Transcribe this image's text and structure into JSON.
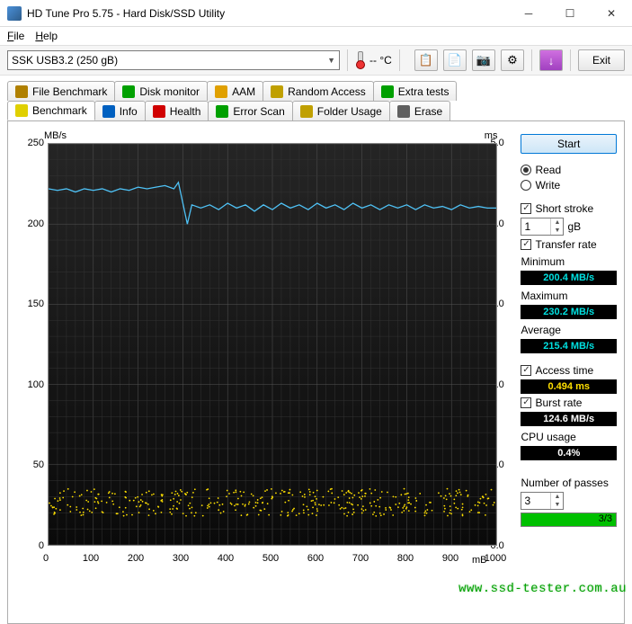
{
  "window": {
    "title": "HD Tune Pro 5.75 - Hard Disk/SSD Utility"
  },
  "menu": {
    "file": "File",
    "help": "Help"
  },
  "toolbar": {
    "drive": "SSK    USB3.2 (250 gB)",
    "temp": "-- °C",
    "exit": "Exit"
  },
  "tabs_top": [
    {
      "label": "File Benchmark",
      "color": "#b08000"
    },
    {
      "label": "Disk monitor",
      "color": "#00a000"
    },
    {
      "label": "AAM",
      "color": "#e0a000"
    },
    {
      "label": "Random Access",
      "color": "#c0a000"
    },
    {
      "label": "Extra tests",
      "color": "#00a000"
    }
  ],
  "tabs_bottom": [
    {
      "label": "Benchmark",
      "color": "#e0d000",
      "active": true
    },
    {
      "label": "Info",
      "color": "#0060c0"
    },
    {
      "label": "Health",
      "color": "#d00000"
    },
    {
      "label": "Error Scan",
      "color": "#00a000"
    },
    {
      "label": "Folder Usage",
      "color": "#c0a000"
    },
    {
      "label": "Erase",
      "color": "#606060"
    }
  ],
  "chart": {
    "ylabel_left": "MB/s",
    "ylabel_right": "ms",
    "xlabel": "mB",
    "yleft": {
      "min": 0,
      "max": 250,
      "step": 50
    },
    "yright": {
      "min": 0.0,
      "max": 5.0,
      "step": 1.0
    },
    "x": {
      "min": 0,
      "max": 1000,
      "step": 100
    },
    "transfer_color": "#4fc3f7",
    "access_color": "#ffe000",
    "grid_color_minor": "#333333",
    "grid_color_major": "#555555",
    "transfer_points": [
      [
        0,
        222
      ],
      [
        20,
        221
      ],
      [
        40,
        222
      ],
      [
        60,
        220
      ],
      [
        80,
        222
      ],
      [
        100,
        221
      ],
      [
        120,
        222
      ],
      [
        140,
        220
      ],
      [
        160,
        222
      ],
      [
        180,
        221
      ],
      [
        200,
        223
      ],
      [
        220,
        222
      ],
      [
        240,
        223
      ],
      [
        260,
        224
      ],
      [
        280,
        222
      ],
      [
        290,
        226
      ],
      [
        300,
        213
      ],
      [
        310,
        200
      ],
      [
        320,
        212
      ],
      [
        340,
        210
      ],
      [
        360,
        212
      ],
      [
        380,
        209
      ],
      [
        400,
        213
      ],
      [
        420,
        210
      ],
      [
        440,
        212
      ],
      [
        460,
        208
      ],
      [
        480,
        212
      ],
      [
        500,
        209
      ],
      [
        520,
        213
      ],
      [
        540,
        210
      ],
      [
        560,
        212
      ],
      [
        580,
        209
      ],
      [
        600,
        213
      ],
      [
        620,
        210
      ],
      [
        640,
        212
      ],
      [
        660,
        209
      ],
      [
        680,
        213
      ],
      [
        700,
        210
      ],
      [
        720,
        212
      ],
      [
        740,
        209
      ],
      [
        760,
        212
      ],
      [
        780,
        210
      ],
      [
        800,
        212
      ],
      [
        820,
        209
      ],
      [
        840,
        212
      ],
      [
        860,
        210
      ],
      [
        880,
        211
      ],
      [
        900,
        209
      ],
      [
        920,
        212
      ],
      [
        940,
        210
      ],
      [
        960,
        211
      ],
      [
        980,
        210
      ],
      [
        1000,
        210
      ]
    ],
    "access_band": {
      "ymin": 18,
      "ymax": 35,
      "count": 420
    }
  },
  "side": {
    "start": "Start",
    "read": "Read",
    "write": "Write",
    "short_stroke": "Short stroke",
    "short_stroke_val": "1",
    "short_stroke_unit": "gB",
    "transfer_rate": "Transfer rate",
    "min_label": "Minimum",
    "min_val": "200.4 MB/s",
    "max_label": "Maximum",
    "max_val": "230.2 MB/s",
    "avg_label": "Average",
    "avg_val": "215.4 MB/s",
    "access_label": "Access time",
    "access_val": "0.494 ms",
    "burst_label": "Burst rate",
    "burst_val": "124.6 MB/s",
    "cpu_label": "CPU usage",
    "cpu_val": "0.4%",
    "passes_label": "Number of passes",
    "passes_val": "3",
    "progress_text": "3/3",
    "progress_pct": 100
  },
  "watermark": "www.ssd-tester.com.au"
}
